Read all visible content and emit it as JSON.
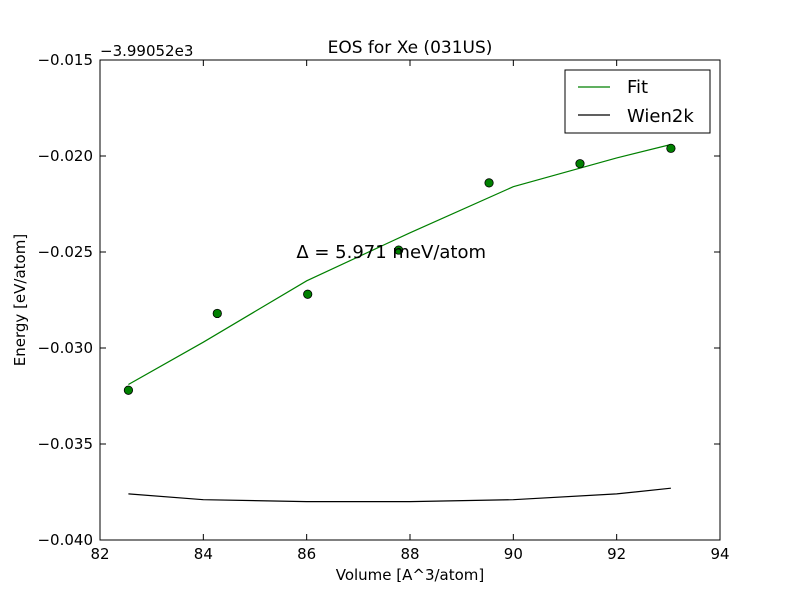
{
  "chart_data": {
    "type": "scatter",
    "title": "EOS for Xe (031US)",
    "xlabel": "Volume [A^3/atom]",
    "ylabel": "Energy [eV/atom]",
    "offset_text": "−3.99052e3",
    "xlim": [
      82,
      94
    ],
    "ylim": [
      -0.04,
      -0.015
    ],
    "xticks": [
      82,
      84,
      86,
      88,
      90,
      92,
      94
    ],
    "xtick_labels": [
      "82",
      "84",
      "86",
      "88",
      "90",
      "92",
      "94"
    ],
    "yticks": [
      -0.04,
      -0.035,
      -0.03,
      -0.025,
      -0.02,
      -0.015
    ],
    "ytick_labels": [
      "−0.040",
      "−0.035",
      "−0.030",
      "−0.025",
      "−0.020",
      "−0.015"
    ],
    "annotation": {
      "text": "Δ = 5.971 meV/atom",
      "x": 85.8,
      "y": -0.025
    },
    "legend": {
      "position": "top-right"
    },
    "points": {
      "color": "#008000",
      "x": [
        82.55,
        84.27,
        86.02,
        87.78,
        89.53,
        91.29,
        93.05
      ],
      "y": [
        -0.0322,
        -0.0282,
        -0.0272,
        -0.0249,
        -0.0214,
        -0.0204,
        -0.0196
      ]
    },
    "series": [
      {
        "name": "Fit",
        "color": "#008000",
        "x": [
          82.55,
          84.0,
          86.0,
          88.0,
          90.0,
          92.0,
          93.05
        ],
        "y": [
          -0.0319,
          -0.0297,
          -0.0265,
          -0.024,
          -0.0216,
          -0.0201,
          -0.0194
        ]
      },
      {
        "name": "Wien2k",
        "color": "#000000",
        "x": [
          82.55,
          84.0,
          86.0,
          87.0,
          88.0,
          90.0,
          92.0,
          93.05
        ],
        "y": [
          -0.0376,
          -0.0379,
          -0.038,
          -0.038,
          -0.038,
          -0.0379,
          -0.0376,
          -0.0373
        ]
      }
    ]
  }
}
